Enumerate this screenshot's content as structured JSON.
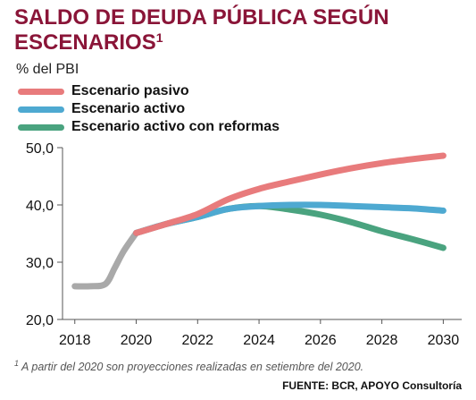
{
  "header": {
    "title": "SALDO DE DEUDA PÚBLICA SEGÚN ESCENARIOS",
    "title_sup": "1",
    "unit": "% del PBI"
  },
  "legend": [
    {
      "label": "Escenario pasivo",
      "color": "#e87b7c"
    },
    {
      "label": "Escenario activo",
      "color": "#4ea9d1"
    },
    {
      "label": "Escenario activo con reformas",
      "color": "#4aa37f"
    }
  ],
  "footer": {
    "footnote_sup": "1",
    "footnote": "A partir del 2020 son proyecciones realizadas en setiembre del 2020.",
    "source": "FUENTE: BCR, APOYO Consultoría"
  },
  "chart_data": {
    "type": "line",
    "xlim": [
      2017.6,
      2030.6
    ],
    "ylim": [
      20,
      50
    ],
    "x_ticks": [
      "2018",
      "2020",
      "2022",
      "2024",
      "2026",
      "2028",
      "2030"
    ],
    "y_ticks": [
      "20,0",
      "30,0",
      "40,0",
      "50,0"
    ],
    "grid": false,
    "legend_position": "top-left",
    "series": [
      {
        "name": "Escenario pasivo",
        "color": "#e87b7c",
        "x": [
          2020,
          2021,
          2022,
          2023,
          2024,
          2025,
          2026,
          2027,
          2028,
          2029,
          2030
        ],
        "y": [
          35.1,
          36.7,
          38.4,
          41.0,
          42.8,
          44.1,
          45.3,
          46.4,
          47.3,
          48.0,
          48.6
        ]
      },
      {
        "name": "Escenario activo",
        "color": "#4ea9d1",
        "x": [
          2020,
          2021,
          2022,
          2023,
          2024,
          2025,
          2026,
          2027,
          2028,
          2029,
          2030
        ],
        "y": [
          35.1,
          36.7,
          37.9,
          39.3,
          39.8,
          40.0,
          40.0,
          39.8,
          39.6,
          39.4,
          39.0
        ]
      },
      {
        "name": "Escenario activo con reformas",
        "color": "#4aa37f",
        "x": [
          2020,
          2021,
          2022,
          2023,
          2024,
          2025,
          2026,
          2027,
          2028,
          2029,
          2030
        ],
        "y": [
          35.1,
          36.7,
          37.9,
          39.3,
          39.8,
          39.2,
          38.3,
          37.0,
          35.4,
          34.0,
          32.5
        ]
      },
      {
        "x": [
          2018,
          2018.5,
          2019,
          2019.3,
          2019.6,
          2020
        ],
        "y": [
          25.8,
          25.8,
          26.2,
          29.0,
          32.0,
          35.1
        ],
        "color": "#a9a9a9"
      }
    ]
  }
}
